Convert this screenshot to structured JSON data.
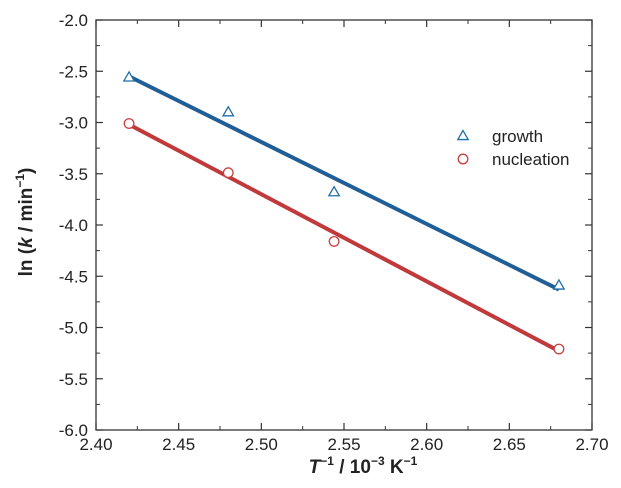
{
  "chart_data": {
    "type": "scatter",
    "xlabel": {
      "main": "T",
      "sup1": "−1",
      "mid": " / 10",
      "sup2": "−3",
      "end": " K",
      "sup3": "−1"
    },
    "ylabel": {
      "main": "ln (",
      "k": "k",
      "mid": " / min",
      "sup": "−1",
      "end": ")"
    },
    "xlim": [
      2.4,
      2.7
    ],
    "ylim": [
      -6.0,
      -2.0
    ],
    "x_ticks": [
      2.4,
      2.45,
      2.5,
      2.55,
      2.6,
      2.65,
      2.7
    ],
    "x_tick_labels": [
      "2.40",
      "2.45",
      "2.50",
      "2.55",
      "2.60",
      "2.65",
      "2.70"
    ],
    "y_ticks": [
      -6.0,
      -5.5,
      -5.0,
      -4.5,
      -4.0,
      -3.5,
      -3.0,
      -2.5,
      -2.0
    ],
    "y_tick_labels": [
      "-6.0",
      "-5.5",
      "-5.0",
      "-4.5",
      "-4.0",
      "-3.5",
      "-3.0",
      "-2.5",
      "-2.0"
    ],
    "grid": false,
    "legend_position": "right-top",
    "series": [
      {
        "name": "growth",
        "marker": "triangle",
        "color": "#1f6ea6",
        "line_color": "#1f5f96",
        "x": [
          2.42,
          2.48,
          2.544,
          2.68
        ],
        "y": [
          -2.56,
          -2.9,
          -3.68,
          -4.59
        ],
        "fit": {
          "x": [
            2.42,
            2.68
          ],
          "y": [
            -2.55,
            -4.63
          ]
        }
      },
      {
        "name": "nucleation",
        "marker": "circle",
        "color": "#c9403d",
        "line_color": "#c0393b",
        "x": [
          2.42,
          2.48,
          2.544,
          2.68
        ],
        "y": [
          -3.01,
          -3.49,
          -4.16,
          -5.21
        ],
        "fit": {
          "x": [
            2.42,
            2.68
          ],
          "y": [
            -3.02,
            -5.23
          ]
        }
      }
    ]
  }
}
